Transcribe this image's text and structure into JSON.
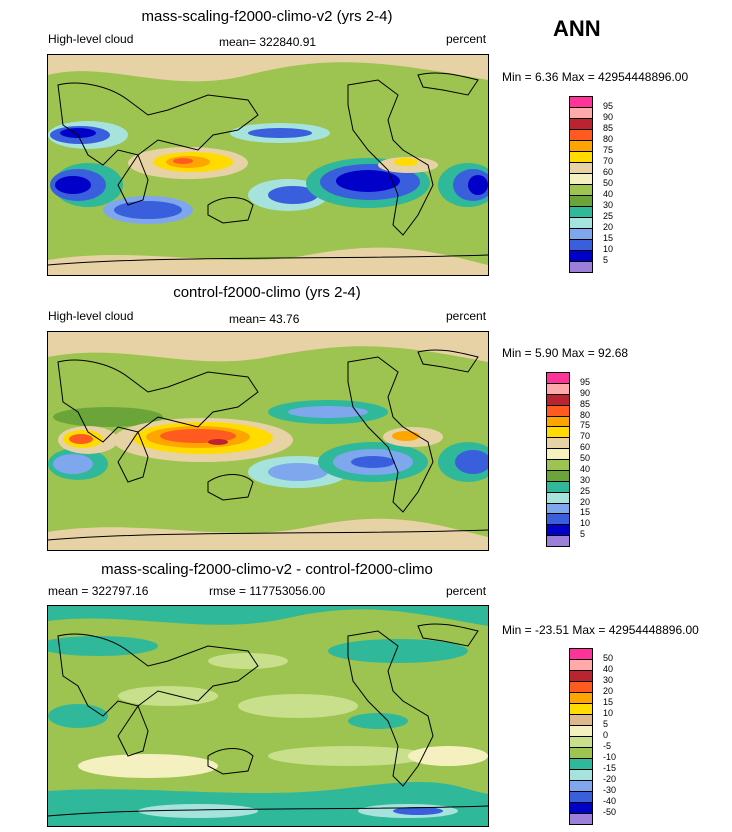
{
  "season": "ANN",
  "units": "percent",
  "panels": [
    {
      "id": "test",
      "title": "mass-scaling-f2000-climo-v2 (yrs 2-4)",
      "left_label": "High-level cloud",
      "mid_label": "mean= 322840.91",
      "right_label": "percent",
      "minmax": "Min =   6.36 Max = 42954448896.00",
      "levels": [
        "95",
        "90",
        "85",
        "80",
        "75",
        "70",
        "60",
        "50",
        "40",
        "30",
        "25",
        "20",
        "15",
        "10",
        "5"
      ],
      "colors": [
        "#ff3399",
        "#ffaaaa",
        "#b92430",
        "#ff5a20",
        "#ffa500",
        "#ffdb00",
        "#e7d2a5",
        "#f5f0c0",
        "#9dc350",
        "#6ba53a",
        "#2fb89a",
        "#a6e3dd",
        "#7ea7ee",
        "#3a5fdc",
        "#0000c8",
        "#9b7fd8"
      ]
    },
    {
      "id": "ref",
      "title": "control-f2000-climo (yrs 2-4)",
      "left_label": "High-level cloud",
      "mid_label": "mean=  43.76",
      "right_label": "percent",
      "minmax": "Min =   5.90 Max = 92.68",
      "levels": [
        "95",
        "90",
        "85",
        "80",
        "75",
        "70",
        "60",
        "50",
        "40",
        "30",
        "25",
        "20",
        "15",
        "10",
        "5"
      ],
      "colors": [
        "#ff3399",
        "#ffaaaa",
        "#b92430",
        "#ff5a20",
        "#ffa500",
        "#ffdb00",
        "#e7d2a5",
        "#f5f0c0",
        "#9dc350",
        "#6ba53a",
        "#2fb89a",
        "#a6e3dd",
        "#7ea7ee",
        "#3a5fdc",
        "#0000c8",
        "#9b7fd8"
      ]
    },
    {
      "id": "diff",
      "title": "mass-scaling-f2000-climo-v2 - control-f2000-climo",
      "left_label": "mean = 322797.16",
      "mid_label": "rmse = 117753056.00",
      "right_label": "percent",
      "minmax": "Min = -23.51 Max = 42954448896.00",
      "levels": [
        "50",
        "40",
        "30",
        "20",
        "15",
        "10",
        "5",
        "0",
        "-5",
        "-10",
        "-15",
        "-20",
        "-30",
        "-40",
        "-50"
      ],
      "colors": [
        "#ff3399",
        "#ffaaaa",
        "#b92430",
        "#ff5a20",
        "#ffa500",
        "#ffdb00",
        "#dcb98c",
        "#f5f0c0",
        "#c8e08c",
        "#9dc350",
        "#2fb89a",
        "#a6e3dd",
        "#7ea7ee",
        "#3a5fdc",
        "#0000c8",
        "#9b7fd8"
      ]
    }
  ]
}
